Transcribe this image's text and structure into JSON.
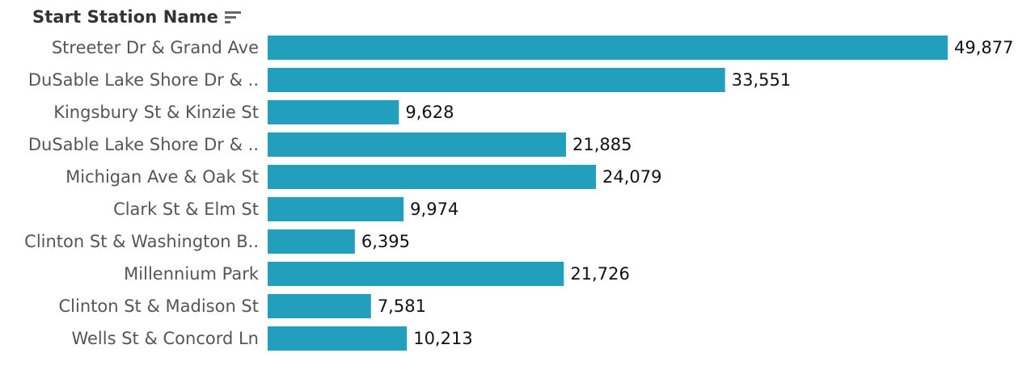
{
  "header": {
    "field_label": "Start Station Name",
    "sort_icon": "sort-descending-icon"
  },
  "colors": {
    "bar": "#229fbc",
    "label": "#555555",
    "value": "#111111"
  },
  "chart_data": {
    "type": "bar",
    "orientation": "horizontal",
    "categories": [
      "Streeter Dr & Grand Ave",
      "DuSable Lake Shore Dr & ..",
      "Kingsbury St & Kinzie St",
      "DuSable Lake Shore Dr & ..",
      "Michigan Ave & Oak St",
      "Clark St & Elm St",
      "Clinton St & Washington B..",
      "Millennium Park",
      "Clinton St & Madison St",
      "Wells St & Concord Ln"
    ],
    "values": [
      49877,
      33551,
      9628,
      21885,
      24079,
      9974,
      6395,
      21726,
      7581,
      10213
    ],
    "value_labels": [
      "49,877",
      "33,551",
      "9,628",
      "21,885",
      "24,079",
      "9,974",
      "6,395",
      "21,726",
      "7,581",
      "10,213"
    ],
    "xlim": [
      0,
      49877
    ],
    "grid": false
  }
}
